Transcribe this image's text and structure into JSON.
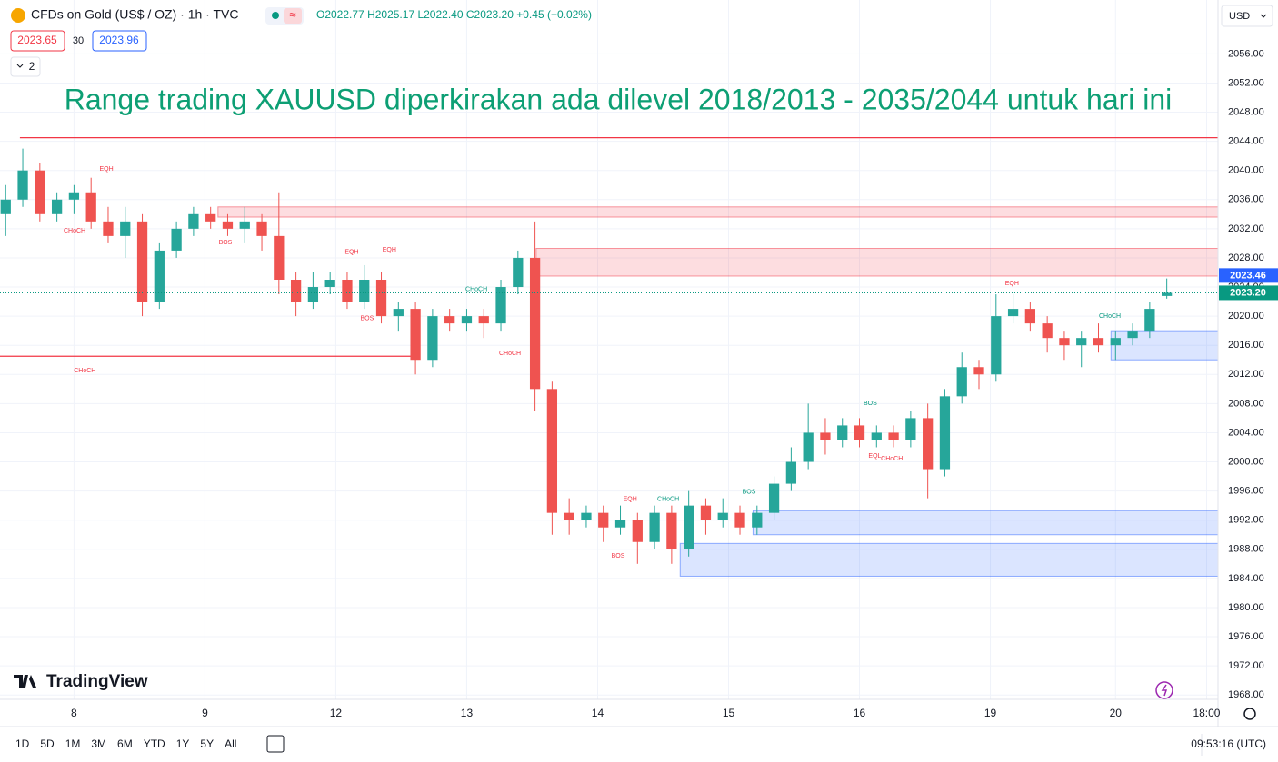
{
  "header": {
    "symbol": "CFDs on Gold (US$ / OZ) · 1h · TVC",
    "ohlc": [
      "O2022.77",
      "H2025.17",
      "L2022.40",
      "C2023.20",
      "+0.45 (+0.02%)"
    ],
    "bid": "2023.65",
    "spread": "30",
    "ask": "2023.96",
    "indicators": "2",
    "currency": "USD"
  },
  "chart_data": {
    "type": "candlestick",
    "title": "Range trading XAUUSD diperkirakan ada dilevel 2018/2013 - 2035/2044 untuk hari ini",
    "x": [
      1,
      4,
      7,
      10,
      13,
      16,
      19,
      22,
      25,
      28,
      31,
      34,
      37,
      40,
      43,
      46,
      49,
      52,
      55,
      58,
      61,
      64,
      67,
      70,
      73,
      76,
      79,
      82,
      85,
      88,
      91,
      94,
      97,
      100,
      103,
      106,
      109,
      112,
      115,
      118,
      121,
      124,
      127,
      130,
      133,
      136,
      139,
      142,
      145,
      148,
      151,
      154,
      157,
      160,
      163,
      166,
      169,
      172,
      175,
      178,
      181,
      184,
      187,
      190,
      193,
      196,
      199,
      202,
      205
    ],
    "open": [
      2034,
      2036,
      2040,
      2034,
      2036,
      2037,
      2033,
      2031,
      2033,
      2022,
      2029,
      2032,
      2034,
      2033,
      2032,
      2033,
      2031,
      2025,
      2022,
      2024,
      2025,
      2022,
      2025,
      2020,
      2021,
      2014,
      2020,
      2019,
      2020,
      2019,
      2024,
      2028,
      2010,
      1993,
      1992,
      1993,
      1991,
      1992,
      1989,
      1993,
      1988,
      1994,
      1992,
      1993,
      1991,
      1993,
      1997,
      2000,
      2004,
      2003,
      2005,
      2003,
      2004,
      2003,
      2006,
      1999,
      2009,
      2013,
      2012,
      2020,
      2021,
      2019,
      2017,
      2016,
      2017,
      2016,
      2017,
      2018,
      2022.77
    ],
    "high": [
      2038,
      2043,
      2041,
      2037,
      2038,
      2039,
      2035,
      2035,
      2034,
      2030,
      2033,
      2035,
      2035,
      2034,
      2035,
      2034,
      2037,
      2026,
      2026,
      2026,
      2026,
      2027,
      2026,
      2022,
      2022,
      2021,
      2021,
      2021,
      2021,
      2025,
      2029,
      2033,
      2011,
      1995,
      1994,
      1994,
      1994,
      1993,
      1994,
      1994,
      1996,
      1995,
      1995,
      1994,
      1994,
      1998,
      2002,
      2008,
      2006,
      2006,
      2006,
      2005,
      2005,
      2007,
      2008,
      2010,
      2015,
      2014,
      2023,
      2023,
      2022,
      2020,
      2018,
      2018,
      2019,
      2018,
      2019,
      2022,
      2025.17
    ],
    "low": [
      2031,
      2035,
      2033,
      2033,
      2034,
      2032,
      2030,
      2028,
      2020,
      2021,
      2028,
      2031,
      2032,
      2031,
      2030,
      2029,
      2023,
      2020,
      2021,
      2023,
      2021,
      2021,
      2019,
      2018,
      2012,
      2013,
      2018,
      2018,
      2017,
      2018,
      2023,
      2007,
      1990,
      1990,
      1991,
      1989,
      1990,
      1986,
      1988,
      1986,
      1987,
      1990,
      1991,
      1990,
      1990,
      1992,
      1996,
      1999,
      2001,
      2002,
      2002,
      2002,
      2002,
      2002,
      1995,
      1998,
      2008,
      2010,
      2011,
      2019,
      2018,
      2015,
      2014,
      2013,
      2015,
      2014,
      2016,
      2017,
      2022.4
    ],
    "close": [
      2036,
      2040,
      2034,
      2036,
      2037,
      2033,
      2031,
      2033,
      2022,
      2029,
      2032,
      2034,
      2033,
      2032,
      2033,
      2031,
      2025,
      2022,
      2024,
      2025,
      2022,
      2025,
      2020,
      2021,
      2014,
      2020,
      2019,
      2020,
      2019,
      2024,
      2028,
      2010,
      1993,
      1992,
      1993,
      1991,
      1992,
      1989,
      1993,
      1988,
      1994,
      1992,
      1993,
      1991,
      1993,
      1997,
      2000,
      2004,
      2003,
      2005,
      2003,
      2004,
      2003,
      2006,
      1999,
      2009,
      2013,
      2012,
      2020,
      2021,
      2019,
      2017,
      2016,
      2017,
      2016,
      2017,
      2018,
      2021,
      2023.2
    ],
    "up_color": "#26a69a",
    "down_color": "#ef5350",
    "xlim": [
      0,
      214
    ],
    "xticks": [
      {
        "value": 13,
        "label": "8"
      },
      {
        "value": 36,
        "label": "9"
      },
      {
        "value": 59,
        "label": "12"
      },
      {
        "value": 82,
        "label": "13"
      },
      {
        "value": 105,
        "label": "14"
      },
      {
        "value": 128,
        "label": "15"
      },
      {
        "value": 151,
        "label": "16"
      },
      {
        "value": 174,
        "label": "19"
      },
      {
        "value": 196,
        "label": "20"
      },
      {
        "value": 212,
        "label": "18:00"
      }
    ],
    "ylim": [
      1967.4,
      2063.4
    ],
    "yticks": [
      {
        "value": 1968,
        "label": "1968.00"
      },
      {
        "value": 1972,
        "label": "1972.00"
      },
      {
        "value": 1976,
        "label": "1976.00"
      },
      {
        "value": 1980,
        "label": "1980.00"
      },
      {
        "value": 1984,
        "label": "1984.00"
      },
      {
        "value": 1988,
        "label": "1988.00"
      },
      {
        "value": 1992,
        "label": "1992.00"
      },
      {
        "value": 1996,
        "label": "1996.00"
      },
      {
        "value": 2000,
        "label": "2000.00"
      },
      {
        "value": 2004,
        "label": "2004.00"
      },
      {
        "value": 2008,
        "label": "2008.00"
      },
      {
        "value": 2012,
        "label": "2012.00"
      },
      {
        "value": 2016,
        "label": "2016.00"
      },
      {
        "value": 2020,
        "label": "2020.00"
      },
      {
        "value": 2024,
        "label": "2024.00"
      },
      {
        "value": 2028,
        "label": "2028.00"
      },
      {
        "value": 2032,
        "label": "2032.00"
      },
      {
        "value": 2036,
        "label": "2036.00"
      },
      {
        "value": 2040,
        "label": "2040.00"
      },
      {
        "value": 2044,
        "label": "2044.00"
      },
      {
        "value": 2048,
        "label": "2048.00"
      },
      {
        "value": 2052,
        "label": "2052.00"
      },
      {
        "value": 2056,
        "label": "2056.00"
      }
    ],
    "grid": true,
    "zones": [
      {
        "y": [
          2033.6,
          2035
        ],
        "from": 38.3,
        "color": "#f23645"
      },
      {
        "y": [
          2025.5,
          2029.3
        ],
        "from": 94.2,
        "color": "#f23645"
      },
      {
        "y": [
          2014,
          2018
        ],
        "from": 195.2,
        "color": "#2962ff"
      },
      {
        "y": [
          1990,
          1993.3
        ],
        "from": 132.3,
        "color": "#2962ff"
      },
      {
        "y": [
          1984.3,
          1988.8
        ],
        "from": 119.5,
        "color": "#2962ff"
      }
    ],
    "lines": [
      {
        "y": 2044.5,
        "from": 3.5,
        "color": "#f23645"
      },
      {
        "y": 2014.5,
        "from": 0,
        "to": 72.7,
        "color": "#f23645"
      }
    ],
    "annotations": [
      {
        "text": "EQH",
        "x": 18.7,
        "y": 2040.2,
        "color": "#f23645"
      },
      {
        "text": "CHoCH",
        "x": 13.1,
        "y": 2031.7,
        "color": "#f23645"
      },
      {
        "text": "BOS",
        "x": 39.6,
        "y": 2030.1,
        "color": "#f23645"
      },
      {
        "text": "EQH",
        "x": 61.8,
        "y": 2028.8,
        "color": "#f23645"
      },
      {
        "text": "EQH",
        "x": 68.4,
        "y": 2029.1,
        "color": "#f23645"
      },
      {
        "text": "BOS",
        "x": 64.5,
        "y": 2019.7,
        "color": "#f23645"
      },
      {
        "text": "CHoCH",
        "x": 14.9,
        "y": 2012.5,
        "color": "#f23645"
      },
      {
        "text": "CHoCH",
        "x": 83.7,
        "y": 2023.7,
        "color": "#089981"
      },
      {
        "text": "CHoCH",
        "x": 89.6,
        "y": 2014.9,
        "color": "#f23645"
      },
      {
        "text": "EQH",
        "x": 110.7,
        "y": 1994.9,
        "color": "#f23645"
      },
      {
        "text": "CHoCH",
        "x": 117.4,
        "y": 1994.9,
        "color": "#089981"
      },
      {
        "text": "BOS",
        "x": 108.6,
        "y": 1987.1,
        "color": "#f23645"
      },
      {
        "text": "BOS",
        "x": 131.6,
        "y": 1995.9,
        "color": "#089981"
      },
      {
        "text": "BOS",
        "x": 152.9,
        "y": 2008.0,
        "color": "#089981"
      },
      {
        "text": "EQL",
        "x": 153.7,
        "y": 2000.8,
        "color": "#f23645"
      },
      {
        "text": "CHoCH",
        "x": 156.7,
        "y": 2000.4,
        "color": "#f23645"
      },
      {
        "text": "EQH",
        "x": 177.8,
        "y": 2024.5,
        "color": "#f23645"
      },
      {
        "text": "CHoCH",
        "x": 195,
        "y": 2020.0,
        "color": "#089981"
      }
    ],
    "price_labels": [
      {
        "value": 2023.46,
        "label": "2023.46",
        "color": "#2962ff"
      },
      {
        "value": 2023.2,
        "label": "2023.20",
        "color": "#089981"
      }
    ]
  },
  "footer": {
    "logo": "TradingView",
    "ranges": [
      "1D",
      "5D",
      "1M",
      "3M",
      "6M",
      "YTD",
      "1Y",
      "5Y",
      "All"
    ],
    "clock": "09:53:16 (UTC)"
  }
}
